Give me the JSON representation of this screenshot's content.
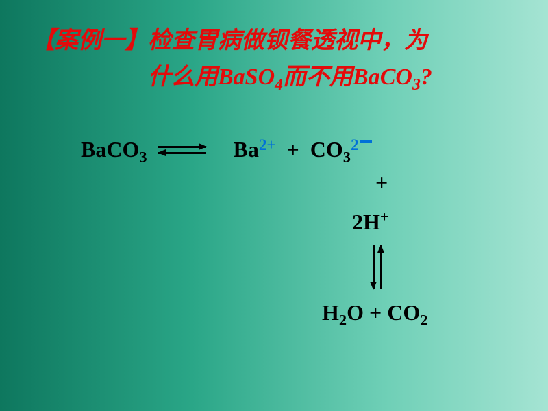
{
  "background": {
    "gradient_from": "#0e775e",
    "gradient_to": "#a5e4d3"
  },
  "title": {
    "bracket_open": "【",
    "label": "案例一",
    "bracket_close": "】",
    "line1_rest": "检查胃病做钡餐透视中，为",
    "line2_prefix": "什么用",
    "baso4": "BaSO",
    "baso4_sub": "4",
    "middle": "而不用",
    "baco3": "BaCO",
    "baco3_sub": "3",
    "qmark": "?",
    "color": "#e40a0a",
    "fontsize": 34
  },
  "equation": {
    "baco3": "BaCO",
    "baco3_sub": "3",
    "ba": "Ba",
    "ba_charge": "2+",
    "plus": "+",
    "co3": "CO",
    "co3_sub": "3",
    "co3_charge_num": "2",
    "h2": "2H",
    "h_charge": "+",
    "h2o": "H",
    "h2o_sub": "2",
    "o": "O",
    "co2": "CO",
    "co2_sub": "2",
    "text_color": "#000000",
    "charge_color": "#0070d8",
    "fontsize": 32
  }
}
